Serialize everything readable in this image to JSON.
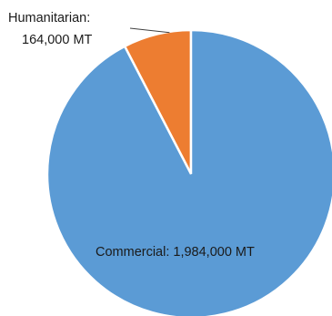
{
  "chart_data": {
    "type": "pie",
    "title": "",
    "slices": [
      {
        "category": "Humanitarian",
        "value": 164000,
        "unit": "MT",
        "label_line1": "Humanitarian:",
        "label_line2": "164,000 MT",
        "color": "#ED7D31"
      },
      {
        "category": "Commercial",
        "value": 1984000,
        "unit": "MT",
        "label": "Commercial:  1,984,000 MT",
        "color": "#5B9BD5"
      }
    ],
    "legend": "none",
    "start": "top",
    "direction": "counter-clockwise"
  }
}
